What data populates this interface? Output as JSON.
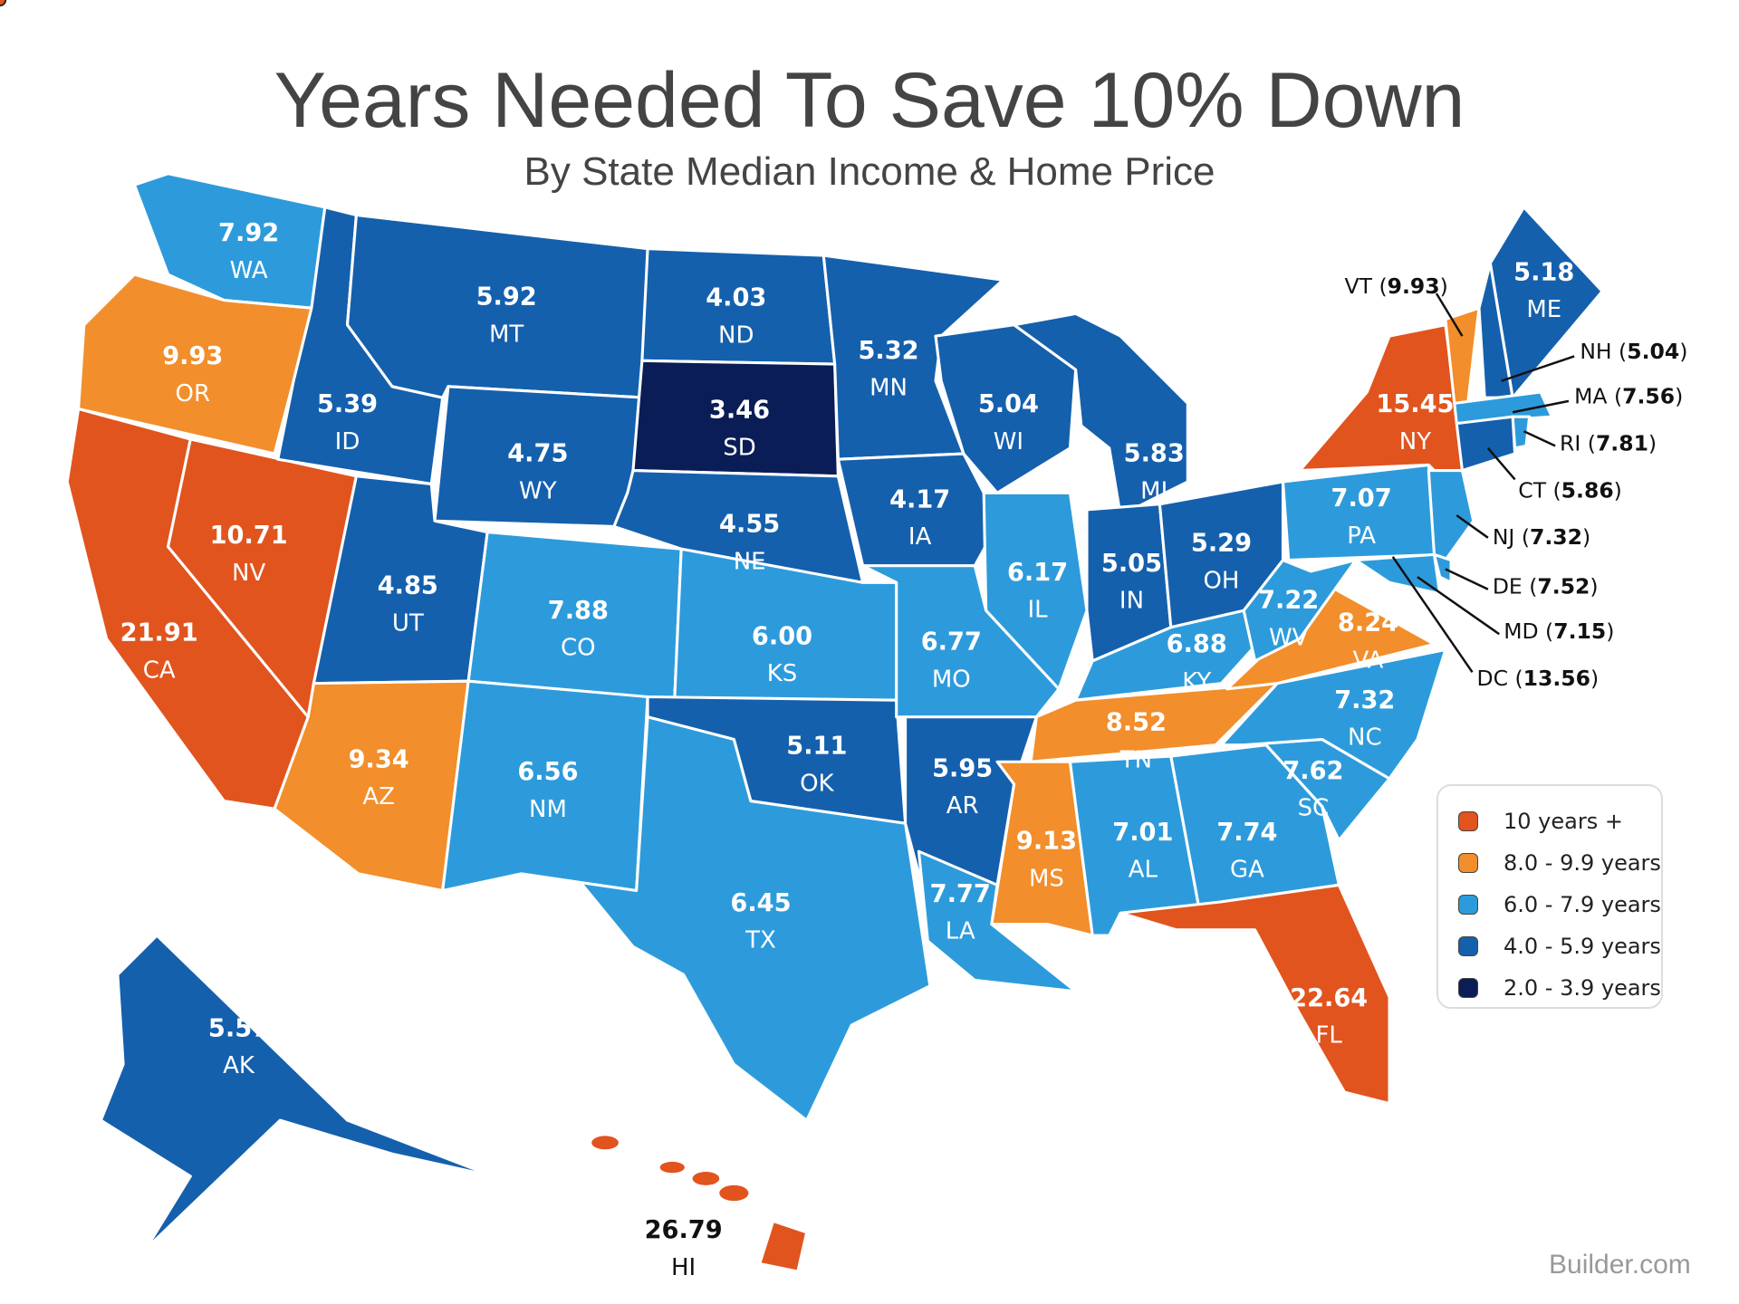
{
  "title": "Years Needed To Save 10% Down",
  "subtitle": "By State Median Income & Home Price",
  "source": "Builder.com",
  "legend": [
    {
      "label": "10 years +",
      "color": "#E1541E"
    },
    {
      "label": "8.0 - 9.9 years",
      "color": "#F28E2B"
    },
    {
      "label": "6.0 - 7.9 years",
      "color": "#2D9BDB"
    },
    {
      "label": "4.0 - 5.9 years",
      "color": "#1560AD"
    },
    {
      "label": "2.0 - 3.9 years",
      "color": "#0B1D56"
    }
  ],
  "states": [
    {
      "abbr": "WA",
      "value": "7.92",
      "category": 2
    },
    {
      "abbr": "OR",
      "value": "9.93",
      "category": 1
    },
    {
      "abbr": "CA",
      "value": "21.91",
      "category": 0
    },
    {
      "abbr": "NV",
      "value": "10.71",
      "category": 0
    },
    {
      "abbr": "ID",
      "value": "5.39",
      "category": 3
    },
    {
      "abbr": "MT",
      "value": "5.92",
      "category": 3
    },
    {
      "abbr": "WY",
      "value": "4.75",
      "category": 3
    },
    {
      "abbr": "UT",
      "value": "4.85",
      "category": 3
    },
    {
      "abbr": "CO",
      "value": "7.88",
      "category": 2
    },
    {
      "abbr": "AZ",
      "value": "9.34",
      "category": 1
    },
    {
      "abbr": "NM",
      "value": "6.56",
      "category": 2
    },
    {
      "abbr": "ND",
      "value": "4.03",
      "category": 3
    },
    {
      "abbr": "SD",
      "value": "3.46",
      "category": 4
    },
    {
      "abbr": "NE",
      "value": "4.55",
      "category": 3
    },
    {
      "abbr": "KS",
      "value": "6.00",
      "category": 2
    },
    {
      "abbr": "OK",
      "value": "5.11",
      "category": 3
    },
    {
      "abbr": "TX",
      "value": "6.45",
      "category": 2
    },
    {
      "abbr": "MN",
      "value": "5.32",
      "category": 3
    },
    {
      "abbr": "IA",
      "value": "4.17",
      "category": 3
    },
    {
      "abbr": "MO",
      "value": "6.77",
      "category": 2
    },
    {
      "abbr": "AR",
      "value": "5.95",
      "category": 3
    },
    {
      "abbr": "LA",
      "value": "7.77",
      "category": 2
    },
    {
      "abbr": "WI",
      "value": "5.04",
      "category": 3
    },
    {
      "abbr": "IL",
      "value": "6.17",
      "category": 2
    },
    {
      "abbr": "MI",
      "value": "5.83",
      "category": 3
    },
    {
      "abbr": "IN",
      "value": "5.05",
      "category": 3
    },
    {
      "abbr": "OH",
      "value": "5.29",
      "category": 3
    },
    {
      "abbr": "KY",
      "value": "6.88",
      "category": 2
    },
    {
      "abbr": "TN",
      "value": "8.52",
      "category": 1
    },
    {
      "abbr": "MS",
      "value": "9.13",
      "category": 1
    },
    {
      "abbr": "AL",
      "value": "7.01",
      "category": 2
    },
    {
      "abbr": "GA",
      "value": "7.74",
      "category": 2
    },
    {
      "abbr": "FL",
      "value": "22.64",
      "category": 0
    },
    {
      "abbr": "SC",
      "value": "7.62",
      "category": 2
    },
    {
      "abbr": "NC",
      "value": "7.32",
      "category": 2
    },
    {
      "abbr": "VA",
      "value": "8.24",
      "category": 1
    },
    {
      "abbr": "WV",
      "value": "7.22",
      "category": 2
    },
    {
      "abbr": "PA",
      "value": "7.07",
      "category": 2
    },
    {
      "abbr": "NY",
      "value": "15.45",
      "category": 0
    },
    {
      "abbr": "ME",
      "value": "5.18",
      "category": 3
    },
    {
      "abbr": "AK",
      "value": "5.57",
      "category": 3
    },
    {
      "abbr": "HI",
      "value": "26.79",
      "category": 0
    },
    {
      "abbr": "VT",
      "value": "9.93",
      "category": 1
    },
    {
      "abbr": "NH",
      "value": "5.04",
      "category": 3
    },
    {
      "abbr": "MA",
      "value": "7.56",
      "category": 2
    },
    {
      "abbr": "RI",
      "value": "7.81",
      "category": 2
    },
    {
      "abbr": "CT",
      "value": "5.86",
      "category": 3
    },
    {
      "abbr": "NJ",
      "value": "7.32",
      "category": 2
    },
    {
      "abbr": "DE",
      "value": "7.52",
      "category": 2
    },
    {
      "abbr": "MD",
      "value": "7.15",
      "category": 2
    },
    {
      "abbr": "DC",
      "value": "13.56",
      "category": 0
    }
  ]
}
